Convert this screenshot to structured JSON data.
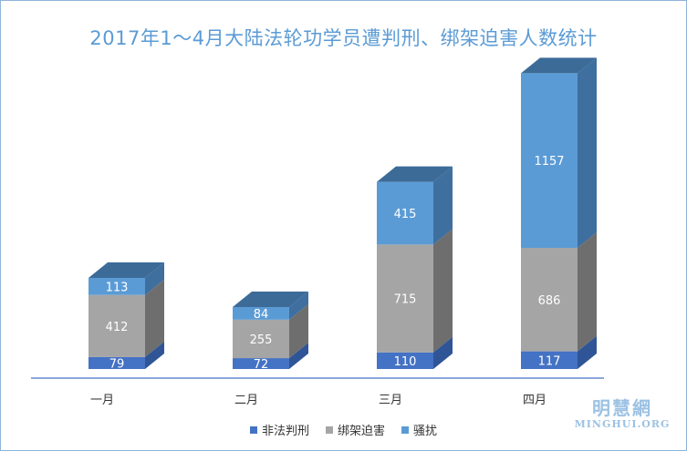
{
  "chart_data": {
    "type": "bar",
    "stacked": true,
    "three_d": true,
    "title": "2017年1～4月大陆法轮功学员遭判刑、绑架迫害人数统计",
    "categories": [
      "一月",
      "二月",
      "三月",
      "四月"
    ],
    "series": [
      {
        "name": "非法判刑",
        "values": [
          79,
          72,
          110,
          117
        ],
        "color": "#4472c4"
      },
      {
        "name": "绑架迫害",
        "values": [
          412,
          255,
          715,
          686
        ],
        "color": "#a5a5a5"
      },
      {
        "name": "骚扰",
        "values": [
          113,
          84,
          415,
          1157
        ],
        "color": "#5b9bd5"
      }
    ],
    "legend_position": "bottom",
    "grid": false
  },
  "watermark": {
    "name": "明慧網",
    "url": "MINGHUI.ORG"
  }
}
